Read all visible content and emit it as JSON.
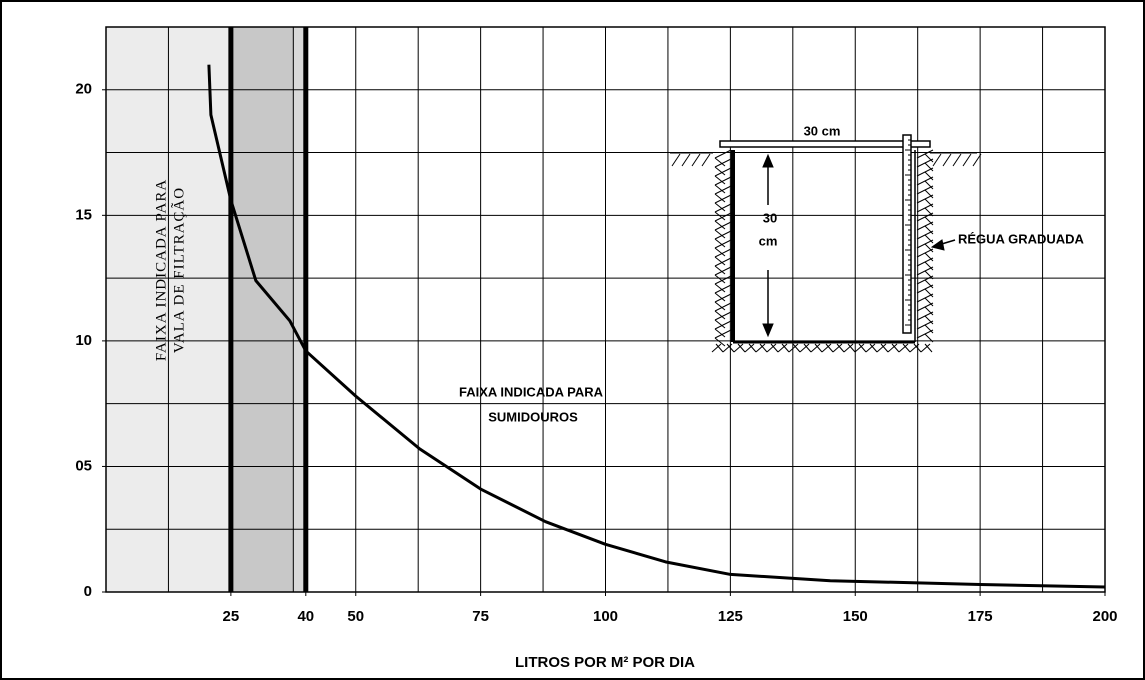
{
  "chart_data": {
    "type": "line",
    "x_label": "LITROS POR M² POR DIA",
    "x": [
      20.6,
      21,
      25,
      30,
      36.8,
      40,
      50,
      62.8,
      75,
      88,
      100,
      112,
      125,
      145,
      175,
      200
    ],
    "values": [
      21,
      19,
      15.6,
      12.4,
      10.8,
      9.6,
      7.8,
      5.7,
      4.1,
      2.8,
      1.9,
      1.2,
      0.7,
      0.45,
      0.3,
      0.2
    ],
    "color": "#000000",
    "xlim": [
      0,
      200
    ],
    "ylim": [
      0,
      22.5
    ],
    "xticks": [
      25,
      40,
      50,
      75,
      100,
      125,
      150,
      175,
      200
    ],
    "yticks": [
      0,
      {
        "value": 5,
        "label": "05"
      },
      10,
      15,
      20
    ],
    "xgrid": [
      12.5,
      25,
      37.5,
      50,
      62.5,
      75,
      87.5,
      100,
      112.5,
      125,
      137.5,
      150,
      162.5,
      175,
      187.5
    ],
    "ygrid": [
      2.5,
      5,
      7.5,
      10,
      12.5,
      15,
      17.5,
      20
    ],
    "bands": [
      {
        "from": 0,
        "to": 25,
        "color": "#ececec"
      },
      {
        "from": 25,
        "to": 37.5,
        "color": "#c8c8c8"
      },
      {
        "from": 37.5,
        "to": 40,
        "color": "#d9d9d9"
      }
    ],
    "thick_lines": [
      25,
      40
    ],
    "annotations": [
      "FAIXA INDICADA PARA",
      "VALA DE FILTRAÇÃO",
      "FAIXA INDICADA PARA",
      "SUMIDOUROS"
    ],
    "inset": {
      "width_label": "30 cm",
      "depth_label": [
        "30",
        "cm"
      ],
      "ruler_label": "RÉGUA GRADUADA"
    }
  }
}
